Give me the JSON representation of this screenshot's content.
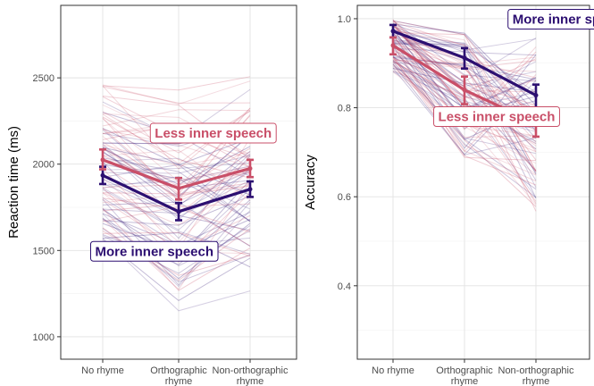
{
  "chart_data": [
    {
      "type": "line",
      "ylabel": "Reaction time (ms)",
      "xlabel": "",
      "categories": [
        "No rhyme",
        "Orthographic\nrhyme",
        "Non-orthographic\nrhyme"
      ],
      "ylim": [
        870,
        2920
      ],
      "yticks": [
        1000,
        1500,
        2000,
        2500
      ],
      "grid": true,
      "series": [
        {
          "name": "More inner speech",
          "color": "#2c0f71",
          "values": [
            1935,
            1725,
            1855
          ],
          "ci": [
            [
              1885,
              1985
            ],
            [
              1675,
              1775
            ],
            [
              1810,
              1900
            ]
          ]
        },
        {
          "name": "Less inner speech",
          "color": "#c94f68",
          "values": [
            2025,
            1860,
            1975
          ],
          "ci": [
            [
              1970,
              2085
            ],
            [
              1795,
              1920
            ],
            [
              1925,
              2025
            ]
          ]
        }
      ],
      "annotations": [
        {
          "text": "Less inner speech",
          "color": "#c94f68",
          "x": 1.5,
          "y": 2180
        },
        {
          "text": "More inner speech",
          "color": "#2c0f71",
          "x": 0.7,
          "y": 1495
        }
      ]
    },
    {
      "type": "line",
      "ylabel": "Accuracy",
      "xlabel": "",
      "categories": [
        "No rhyme",
        "Orthographic\nrhyme",
        "Non-orthographic\nrhyme"
      ],
      "ylim": [
        0.235,
        1.03
      ],
      "yticks": [
        0.4,
        0.6,
        0.8,
        1.0
      ],
      "ytick_labels": [
        "0.4",
        "0.6",
        "0.8",
        "1.0"
      ],
      "grid": true,
      "series": [
        {
          "name": "More inner speech",
          "color": "#2c0f71",
          "values": [
            0.972,
            0.912,
            0.828
          ],
          "ci": [
            [
              0.958,
              0.986
            ],
            [
              0.888,
              0.934
            ],
            [
              0.8,
              0.852
            ]
          ]
        },
        {
          "name": "Less inner speech",
          "color": "#c94f68",
          "values": [
            0.94,
            0.84,
            0.765
          ],
          "ci": [
            [
              0.92,
              0.958
            ],
            [
              0.808,
              0.87
            ],
            [
              0.735,
              0.792
            ]
          ]
        }
      ],
      "annotations": [
        {
          "text": "More inner speech",
          "color": "#2c0f71",
          "x": 2.5,
          "y": 0.999
        },
        {
          "text": "Less inner speech",
          "color": "#c94f68",
          "x": 1.45,
          "y": 0.78
        }
      ]
    }
  ]
}
